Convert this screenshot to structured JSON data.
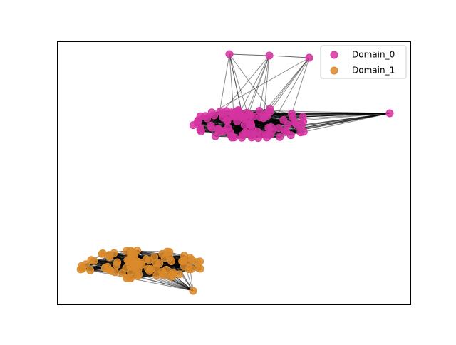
{
  "chart_data": {
    "type": "network",
    "legend_loc": "upper right",
    "series": [
      {
        "name": "Domain_0",
        "color": "#d4349f"
      },
      {
        "name": "Domain_1",
        "color": "#d98a2b"
      }
    ]
  }
}
